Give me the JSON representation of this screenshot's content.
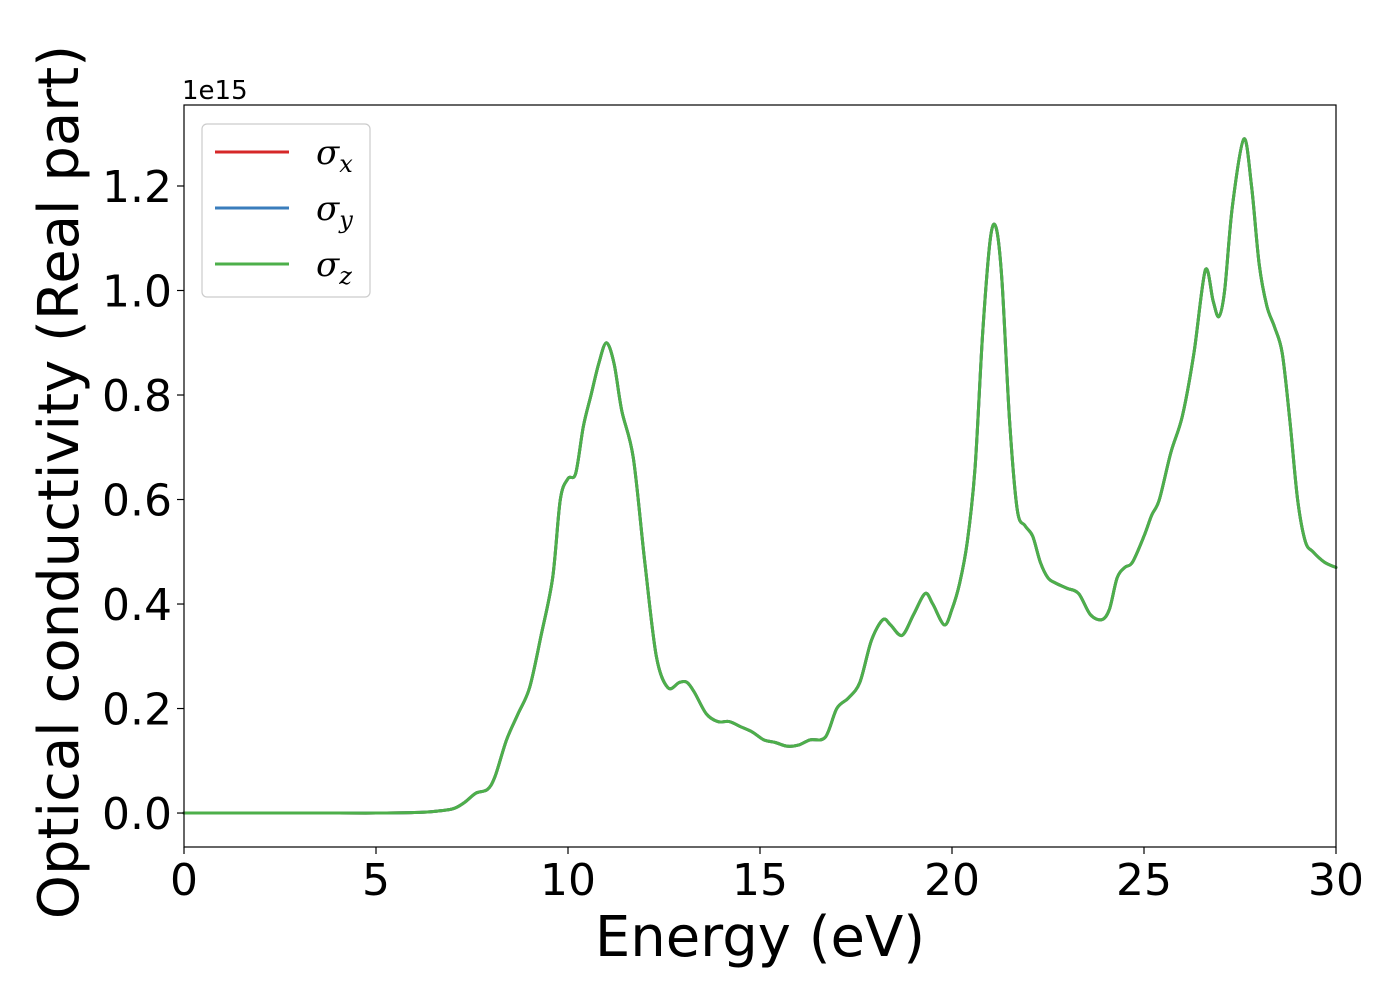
{
  "chart_data": {
    "type": "line",
    "xlabel": "Energy (eV)",
    "ylabel": "Optical conductivity (Real part)",
    "y_offset_text": "1e15",
    "xlim": [
      0,
      30
    ],
    "ylim": [
      -0.065,
      1.355
    ],
    "x_ticks": [
      0,
      5,
      10,
      15,
      20,
      25,
      30
    ],
    "x_tick_labels": [
      "0",
      "5",
      "10",
      "15",
      "20",
      "25",
      "30"
    ],
    "y_ticks": [
      0.0,
      0.2,
      0.4,
      0.6,
      0.8,
      1.0,
      1.2
    ],
    "y_tick_labels": [
      "0.0",
      "0.2",
      "0.4",
      "0.6",
      "0.8",
      "1.0",
      "1.2"
    ],
    "grid": false,
    "legend_position": "top-left",
    "legend": [
      {
        "symbol": "σ",
        "sub": "x",
        "color": "#d62728"
      },
      {
        "symbol": "σ",
        "sub": "y",
        "color": "#3a7dbc"
      },
      {
        "symbol": "σ",
        "sub": "z",
        "color": "#4daf4a"
      }
    ],
    "x": [
      0,
      2,
      4,
      5,
      6,
      6.5,
      7,
      7.3,
      7.6,
      7.9,
      8.1,
      8.4,
      8.7,
      9.0,
      9.3,
      9.6,
      9.8,
      10.0,
      10.2,
      10.4,
      10.6,
      10.8,
      11.0,
      11.2,
      11.4,
      11.7,
      12.0,
      12.3,
      12.6,
      12.9,
      13.1,
      13.3,
      13.6,
      13.9,
      14.2,
      14.5,
      14.8,
      15.1,
      15.4,
      15.7,
      16.0,
      16.3,
      16.7,
      17.0,
      17.3,
      17.6,
      17.9,
      18.2,
      18.4,
      18.7,
      19.0,
      19.3,
      19.5,
      19.8,
      20.0,
      20.2,
      20.4,
      20.6,
      20.8,
      21.0,
      21.15,
      21.3,
      21.5,
      21.7,
      21.9,
      22.1,
      22.3,
      22.5,
      22.7,
      23.0,
      23.3,
      23.6,
      23.9,
      24.1,
      24.3,
      24.5,
      24.7,
      25.0,
      25.2,
      25.4,
      25.7,
      26.0,
      26.3,
      26.6,
      26.8,
      26.95,
      27.1,
      27.3,
      27.6,
      27.8,
      28.0,
      28.2,
      28.4,
      28.6,
      28.8,
      29.0,
      29.2,
      29.4,
      29.7,
      30.0
    ],
    "series": [
      {
        "color": "#d62728",
        "values": [
          0.0,
          0.0,
          0.0,
          0.0,
          0.001,
          0.003,
          0.008,
          0.02,
          0.038,
          0.045,
          0.07,
          0.14,
          0.19,
          0.24,
          0.34,
          0.45,
          0.6,
          0.64,
          0.65,
          0.74,
          0.8,
          0.86,
          0.9,
          0.86,
          0.77,
          0.68,
          0.48,
          0.3,
          0.24,
          0.25,
          0.25,
          0.23,
          0.19,
          0.175,
          0.175,
          0.165,
          0.155,
          0.14,
          0.135,
          0.128,
          0.13,
          0.14,
          0.145,
          0.2,
          0.22,
          0.25,
          0.33,
          0.37,
          0.36,
          0.34,
          0.38,
          0.42,
          0.4,
          0.36,
          0.39,
          0.44,
          0.52,
          0.66,
          0.92,
          1.1,
          1.12,
          1.02,
          0.75,
          0.58,
          0.55,
          0.53,
          0.48,
          0.45,
          0.44,
          0.43,
          0.42,
          0.38,
          0.37,
          0.39,
          0.45,
          0.47,
          0.48,
          0.53,
          0.57,
          0.6,
          0.69,
          0.76,
          0.88,
          1.04,
          0.98,
          0.95,
          1.0,
          1.16,
          1.29,
          1.2,
          1.05,
          0.97,
          0.93,
          0.88,
          0.75,
          0.6,
          0.52,
          0.5,
          0.48,
          0.47
        ]
      },
      {
        "color": "#3a7dbc",
        "values": [
          0.0,
          0.0,
          0.0,
          0.0,
          0.001,
          0.003,
          0.008,
          0.02,
          0.038,
          0.045,
          0.07,
          0.14,
          0.19,
          0.24,
          0.34,
          0.45,
          0.6,
          0.64,
          0.65,
          0.74,
          0.8,
          0.86,
          0.9,
          0.86,
          0.77,
          0.68,
          0.48,
          0.3,
          0.24,
          0.25,
          0.25,
          0.23,
          0.19,
          0.175,
          0.175,
          0.165,
          0.155,
          0.14,
          0.135,
          0.128,
          0.13,
          0.14,
          0.145,
          0.2,
          0.22,
          0.25,
          0.33,
          0.37,
          0.36,
          0.34,
          0.38,
          0.42,
          0.4,
          0.36,
          0.39,
          0.44,
          0.52,
          0.66,
          0.92,
          1.1,
          1.12,
          1.02,
          0.75,
          0.58,
          0.55,
          0.53,
          0.48,
          0.45,
          0.44,
          0.43,
          0.42,
          0.38,
          0.37,
          0.39,
          0.45,
          0.47,
          0.48,
          0.53,
          0.57,
          0.6,
          0.69,
          0.76,
          0.88,
          1.04,
          0.98,
          0.95,
          1.0,
          1.16,
          1.29,
          1.2,
          1.05,
          0.97,
          0.93,
          0.88,
          0.75,
          0.6,
          0.52,
          0.5,
          0.48,
          0.47
        ]
      },
      {
        "color": "#4daf4a",
        "values": [
          0.0,
          0.0,
          0.0,
          0.0,
          0.001,
          0.003,
          0.008,
          0.02,
          0.038,
          0.045,
          0.07,
          0.14,
          0.19,
          0.24,
          0.34,
          0.45,
          0.6,
          0.64,
          0.65,
          0.74,
          0.8,
          0.86,
          0.9,
          0.86,
          0.77,
          0.68,
          0.48,
          0.3,
          0.24,
          0.25,
          0.25,
          0.23,
          0.19,
          0.175,
          0.175,
          0.165,
          0.155,
          0.14,
          0.135,
          0.128,
          0.13,
          0.14,
          0.145,
          0.2,
          0.22,
          0.25,
          0.33,
          0.37,
          0.36,
          0.34,
          0.38,
          0.42,
          0.4,
          0.36,
          0.39,
          0.44,
          0.52,
          0.66,
          0.92,
          1.1,
          1.12,
          1.02,
          0.75,
          0.58,
          0.55,
          0.53,
          0.48,
          0.45,
          0.44,
          0.43,
          0.42,
          0.38,
          0.37,
          0.39,
          0.45,
          0.47,
          0.48,
          0.53,
          0.57,
          0.6,
          0.69,
          0.76,
          0.88,
          1.04,
          0.98,
          0.95,
          1.0,
          1.16,
          1.29,
          1.2,
          1.05,
          0.97,
          0.93,
          0.88,
          0.75,
          0.6,
          0.52,
          0.5,
          0.48,
          0.47
        ]
      }
    ]
  }
}
